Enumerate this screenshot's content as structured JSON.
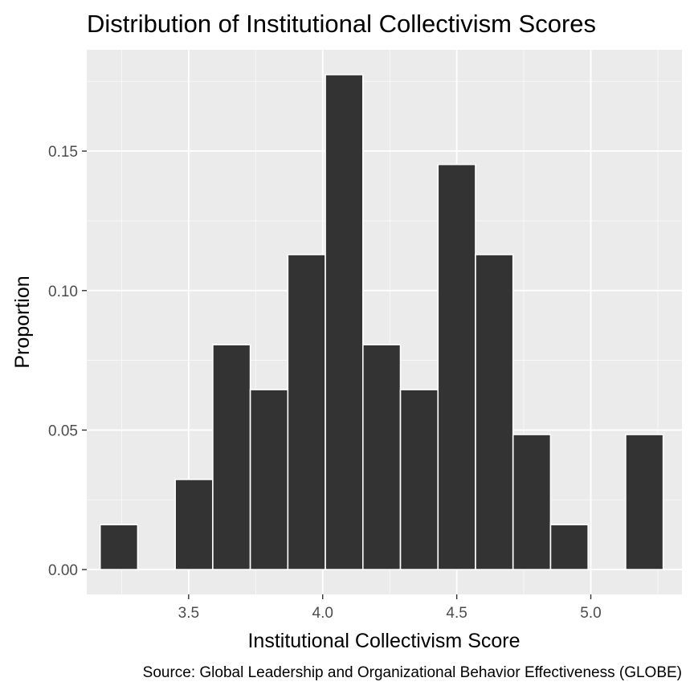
{
  "chart_data": {
    "type": "bar",
    "title": "Distribution of Institutional Collectivism Scores",
    "xlabel": "Institutional Collectivism Score",
    "ylabel": "Proportion",
    "caption": "Source: Global Leadership and Organizational Behavior Effectiveness (GLOBE)",
    "binwidth": 0.14,
    "bins": [
      {
        "x": 3.24,
        "value": 0.0161
      },
      {
        "x": 3.38,
        "value": 0.0
      },
      {
        "x": 3.52,
        "value": 0.0323
      },
      {
        "x": 3.66,
        "value": 0.0806
      },
      {
        "x": 3.8,
        "value": 0.0645
      },
      {
        "x": 3.94,
        "value": 0.1129
      },
      {
        "x": 4.08,
        "value": 0.1774
      },
      {
        "x": 4.22,
        "value": 0.0806
      },
      {
        "x": 4.36,
        "value": 0.0645
      },
      {
        "x": 4.5,
        "value": 0.1452
      },
      {
        "x": 4.64,
        "value": 0.1129
      },
      {
        "x": 4.78,
        "value": 0.0484
      },
      {
        "x": 4.92,
        "value": 0.0161
      },
      {
        "x": 5.06,
        "value": 0.0
      },
      {
        "x": 5.2,
        "value": 0.0484
      }
    ],
    "xlim": [
      3.12,
      5.34
    ],
    "ylim": [
      -0.0089,
      0.1863
    ],
    "xticks": [
      3.5,
      4.0,
      4.5,
      5.0
    ],
    "xtick_labels": [
      "3.5",
      "4.0",
      "4.5",
      "5.0"
    ],
    "yticks": [
      0.0,
      0.05,
      0.1,
      0.15
    ],
    "ytick_labels": [
      "0.00",
      "0.05",
      "0.10",
      "0.15"
    ],
    "grid": true,
    "colors": {
      "panel": "#ebebeb",
      "grid_major": "#ffffff",
      "grid_minor": "#f5f5f5",
      "bar_fill": "#333333",
      "bar_outline": "#ffffff",
      "tick": "#333333"
    }
  }
}
